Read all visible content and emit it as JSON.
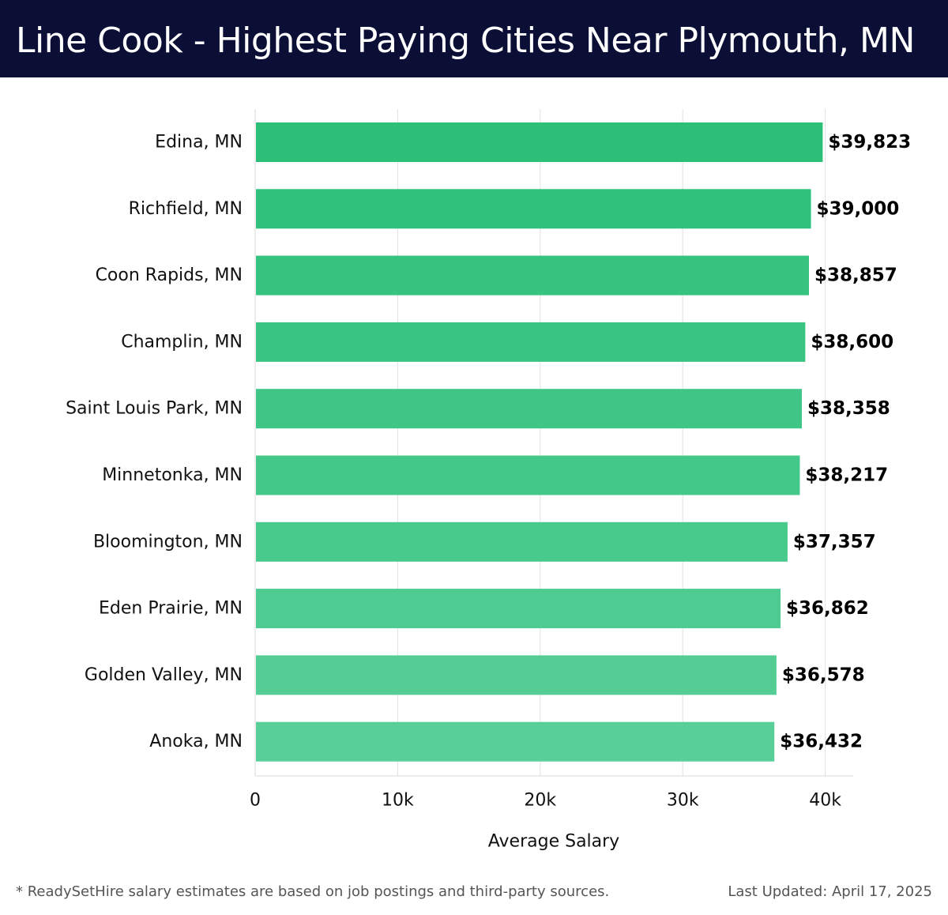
{
  "header": {
    "title": "Line Cook - Highest Paying Cities Near Plymouth, MN"
  },
  "footer": {
    "note": "* ReadySetHire salary estimates are based on job postings and third-party sources.",
    "updated": "Last Updated: April 17, 2025"
  },
  "colors": {
    "header_bg": "#0b0e35",
    "bar_top": "#2bbf78",
    "bar_bottom": "#58cf98"
  },
  "chart_data": {
    "type": "bar",
    "orientation": "horizontal",
    "title": "Line Cook - Highest Paying Cities Near Plymouth, MN",
    "xlabel": "Average Salary",
    "ylabel": "",
    "xlim": [
      0,
      42000
    ],
    "xticks": [
      0,
      10000,
      20000,
      30000,
      40000
    ],
    "xtick_labels": [
      "0",
      "10k",
      "20k",
      "30k",
      "40k"
    ],
    "grid": "vertical",
    "categories": [
      "Edina, MN",
      "Richfield, MN",
      "Coon Rapids, MN",
      "Champlin, MN",
      "Saint Louis Park, MN",
      "Minnetonka, MN",
      "Bloomington, MN",
      "Eden Prairie, MN",
      "Golden Valley, MN",
      "Anoka, MN"
    ],
    "values": [
      39823,
      39000,
      38857,
      38600,
      38358,
      38217,
      37357,
      36862,
      36578,
      36432
    ],
    "value_labels": [
      "$39,823",
      "$39,000",
      "$38,857",
      "$38,600",
      "$38,358",
      "$38,217",
      "$37,357",
      "$36,862",
      "$36,578",
      "$36,432"
    ]
  }
}
